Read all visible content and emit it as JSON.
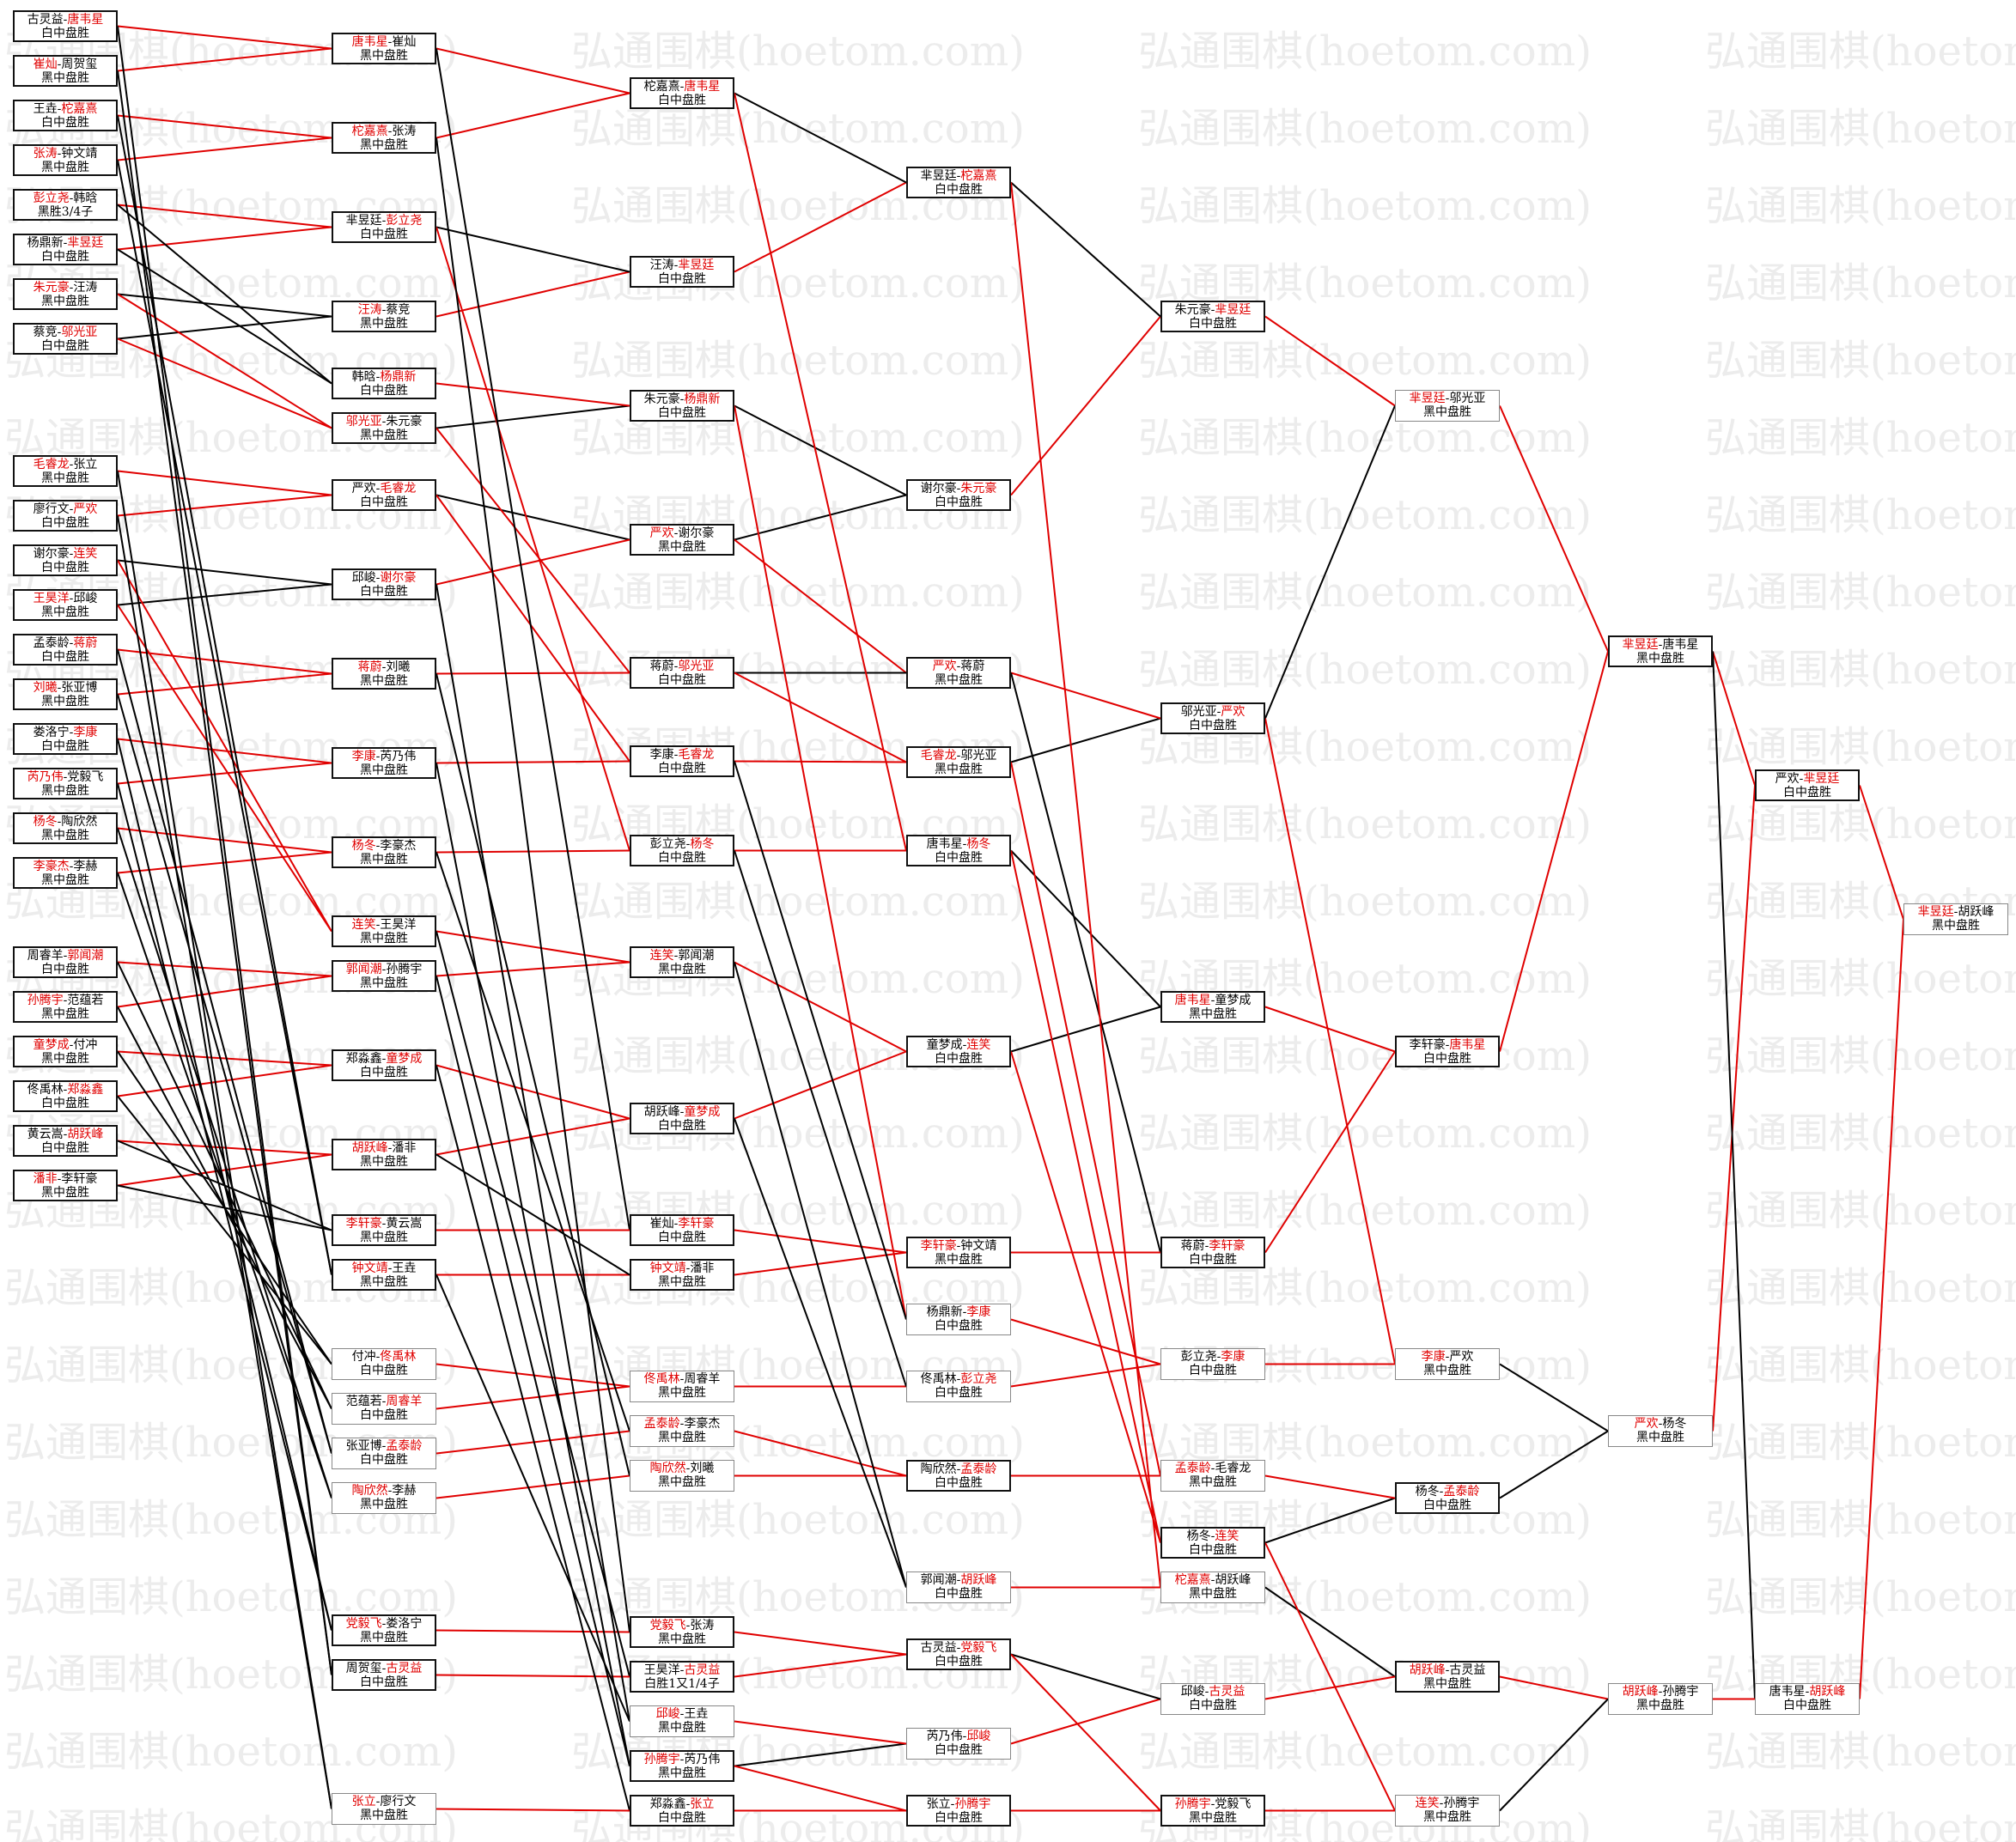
{
  "watermark": "弘通围棋(hoetom.com)",
  "colors": {
    "winner": "#e00000",
    "border": "#111111",
    "line_black": "#000000",
    "line_red": "#e00000"
  },
  "rounds": [
    [
      {
        "a": "古灵益",
        "b": "唐韦星",
        "w": "b",
        "r": "白中盘胜"
      },
      {
        "a": "崔灿",
        "b": "周贺玺",
        "w": "a",
        "r": "黑中盘胜"
      },
      {
        "a": "王垚",
        "b": "柁嘉熹",
        "w": "b",
        "r": "白中盘胜"
      },
      {
        "a": "张涛",
        "b": "钟文靖",
        "w": "a",
        "r": "黑中盘胜"
      },
      {
        "a": "彭立尧",
        "b": "韩晗",
        "w": "a",
        "r": "黑胜3/4子"
      },
      {
        "a": "杨鼎新",
        "b": "芈昱廷",
        "w": "b",
        "r": "白中盘胜"
      },
      {
        "a": "朱元豪",
        "b": "汪涛",
        "w": "a",
        "r": "黑中盘胜"
      },
      {
        "a": "蔡竞",
        "b": "邬光亚",
        "w": "b",
        "r": "白中盘胜"
      },
      {
        "a": "毛睿龙",
        "b": "张立",
        "w": "a",
        "r": "黑中盘胜"
      },
      {
        "a": "廖行文",
        "b": "严欢",
        "w": "b",
        "r": "白中盘胜"
      },
      {
        "a": "谢尔豪",
        "b": "连笑",
        "w": "b",
        "r": "白中盘胜"
      },
      {
        "a": "王昊洋",
        "b": "邱峻",
        "w": "a",
        "r": "黑中盘胜"
      },
      {
        "a": "孟泰龄",
        "b": "蒋蔚",
        "w": "b",
        "r": "白中盘胜"
      },
      {
        "a": "刘曦",
        "b": "张亚博",
        "w": "a",
        "r": "黑中盘胜"
      },
      {
        "a": "娄洛宁",
        "b": "李康",
        "w": "b",
        "r": "白中盘胜"
      },
      {
        "a": "芮乃伟",
        "b": "党毅飞",
        "w": "a",
        "r": "黑中盘胜"
      },
      {
        "a": "杨冬",
        "b": "陶欣然",
        "w": "a",
        "r": "黑中盘胜"
      },
      {
        "a": "李豪杰",
        "b": "李赫",
        "w": "a",
        "r": "黑中盘胜"
      },
      {
        "a": "周睿羊",
        "b": "郭闻潮",
        "w": "b",
        "r": "白中盘胜"
      },
      {
        "a": "孙腾宇",
        "b": "范蕴若",
        "w": "a",
        "r": "黑中盘胜"
      },
      {
        "a": "童梦成",
        "b": "付冲",
        "w": "a",
        "r": "黑中盘胜"
      },
      {
        "a": "佟禹林",
        "b": "郑淼鑫",
        "w": "b",
        "r": "白中盘胜"
      },
      {
        "a": "黄云嵩",
        "b": "胡跃峰",
        "w": "b",
        "r": "白中盘胜"
      },
      {
        "a": "潘非",
        "b": "李轩豪",
        "w": "a",
        "r": "黑中盘胜"
      }
    ],
    [
      {
        "a": "唐韦星",
        "b": "崔灿",
        "w": "a",
        "r": "黑中盘胜"
      },
      {
        "a": "柁嘉熹",
        "b": "张涛",
        "w": "a",
        "r": "黑中盘胜"
      },
      {
        "a": "芈昱廷",
        "b": "彭立尧",
        "w": "b",
        "r": "白中盘胜"
      },
      {
        "a": "汪涛",
        "b": "蔡竞",
        "w": "a",
        "r": "黑中盘胜"
      },
      {
        "a": "韩晗",
        "b": "杨鼎新",
        "w": "b",
        "r": "白中盘胜"
      },
      {
        "a": "邬光亚",
        "b": "朱元豪",
        "w": "a",
        "r": "黑中盘胜"
      },
      {
        "a": "严欢",
        "b": "毛睿龙",
        "w": "b",
        "r": "白中盘胜"
      },
      {
        "a": "邱峻",
        "b": "谢尔豪",
        "w": "b",
        "r": "白中盘胜"
      },
      {
        "a": "蒋蔚",
        "b": "刘曦",
        "w": "a",
        "r": "黑中盘胜"
      },
      {
        "a": "李康",
        "b": "芮乃伟",
        "w": "a",
        "r": "黑中盘胜"
      },
      {
        "a": "杨冬",
        "b": "李豪杰",
        "w": "a",
        "r": "黑中盘胜"
      },
      {
        "a": "连笑",
        "b": "王昊洋",
        "w": "a",
        "r": "黑中盘胜"
      },
      {
        "a": "郭闻潮",
        "b": "孙腾宇",
        "w": "a",
        "r": "黑中盘胜"
      },
      {
        "a": "郑淼鑫",
        "b": "童梦成",
        "w": "b",
        "r": "白中盘胜"
      },
      {
        "a": "胡跃峰",
        "b": "潘非",
        "w": "a",
        "r": "黑中盘胜"
      },
      {
        "a": "李轩豪",
        "b": "黄云嵩",
        "w": "a",
        "r": "黑中盘胜"
      },
      {
        "a": "钟文靖",
        "b": "王垚",
        "w": "a",
        "r": "黑中盘胜"
      },
      {
        "a": "付冲",
        "b": "佟禹林",
        "w": "b",
        "r": "白中盘胜"
      },
      {
        "a": "范蕴若",
        "b": "周睿羊",
        "w": "b",
        "r": "白中盘胜"
      },
      {
        "a": "张亚博",
        "b": "孟泰龄",
        "w": "b",
        "r": "白中盘胜"
      },
      {
        "a": "陶欣然",
        "b": "李赫",
        "w": "a",
        "r": "黑中盘胜"
      },
      {
        "a": "党毅飞",
        "b": "娄洛宁",
        "w": "a",
        "r": "黑中盘胜"
      },
      {
        "a": "周贺玺",
        "b": "古灵益",
        "w": "b",
        "r": "白中盘胜"
      },
      {
        "a": "张立",
        "b": "廖行文",
        "w": "a",
        "r": "黑中盘胜"
      }
    ],
    [
      {
        "a": "柁嘉熹",
        "b": "唐韦星",
        "w": "b",
        "r": "白中盘胜"
      },
      {
        "a": "汪涛",
        "b": "芈昱廷",
        "w": "b",
        "r": "白中盘胜"
      },
      {
        "a": "朱元豪",
        "b": "杨鼎新",
        "w": "b",
        "r": "白中盘胜"
      },
      {
        "a": "严欢",
        "b": "谢尔豪",
        "w": "a",
        "r": "黑中盘胜"
      },
      {
        "a": "蒋蔚",
        "b": "邬光亚",
        "w": "b",
        "r": "白中盘胜"
      },
      {
        "a": "李康",
        "b": "毛睿龙",
        "w": "b",
        "r": "白中盘胜"
      },
      {
        "a": "彭立尧",
        "b": "杨冬",
        "w": "b",
        "r": "白中盘胜"
      },
      {
        "a": "连笑",
        "b": "郭闻潮",
        "w": "a",
        "r": "黑中盘胜"
      },
      {
        "a": "胡跃峰",
        "b": "童梦成",
        "w": "b",
        "r": "白中盘胜"
      },
      {
        "a": "崔灿",
        "b": "李轩豪",
        "w": "b",
        "r": "白中盘胜"
      },
      {
        "a": "钟文靖",
        "b": "潘非",
        "w": "a",
        "r": "黑中盘胜"
      },
      {
        "a": "佟禹林",
        "b": "周睿羊",
        "w": "a",
        "r": "黑中盘胜"
      },
      {
        "a": "孟泰龄",
        "b": "李豪杰",
        "w": "a",
        "r": "黑中盘胜"
      },
      {
        "a": "陶欣然",
        "b": "刘曦",
        "w": "a",
        "r": "黑中盘胜"
      },
      {
        "a": "党毅飞",
        "b": "张涛",
        "w": "a",
        "r": "黑中盘胜"
      },
      {
        "a": "王昊洋",
        "b": "古灵益",
        "w": "b",
        "r": "白胜1又1/4子"
      },
      {
        "a": "邱峻",
        "b": "王垚",
        "w": "a",
        "r": "黑中盘胜"
      },
      {
        "a": "孙腾宇",
        "b": "芮乃伟",
        "w": "a",
        "r": "黑中盘胜"
      },
      {
        "a": "郑淼鑫",
        "b": "张立",
        "w": "b",
        "r": "白中盘胜"
      }
    ],
    [
      {
        "a": "芈昱廷",
        "b": "柁嘉熹",
        "w": "b",
        "r": "白中盘胜"
      },
      {
        "a": "谢尔豪",
        "b": "朱元豪",
        "w": "b",
        "r": "白中盘胜"
      },
      {
        "a": "严欢",
        "b": "蒋蔚",
        "w": "a",
        "r": "黑中盘胜"
      },
      {
        "a": "毛睿龙",
        "b": "邬光亚",
        "w": "a",
        "r": "黑中盘胜"
      },
      {
        "a": "唐韦星",
        "b": "杨冬",
        "w": "b",
        "r": "白中盘胜"
      },
      {
        "a": "童梦成",
        "b": "连笑",
        "w": "b",
        "r": "白中盘胜"
      },
      {
        "a": "李轩豪",
        "b": "钟文靖",
        "w": "a",
        "r": "黑中盘胜"
      },
      {
        "a": "杨鼎新",
        "b": "李康",
        "w": "b",
        "r": "白中盘胜"
      },
      {
        "a": "佟禹林",
        "b": "彭立尧",
        "w": "b",
        "r": "白中盘胜"
      },
      {
        "a": "陶欣然",
        "b": "孟泰龄",
        "w": "b",
        "r": "白中盘胜"
      },
      {
        "a": "郭闻潮",
        "b": "胡跃峰",
        "w": "b",
        "r": "白中盘胜"
      },
      {
        "a": "古灵益",
        "b": "党毅飞",
        "w": "b",
        "r": "白中盘胜"
      },
      {
        "a": "芮乃伟",
        "b": "邱峻",
        "w": "b",
        "r": "白中盘胜"
      },
      {
        "a": "张立",
        "b": "孙腾宇",
        "w": "b",
        "r": "白中盘胜"
      }
    ],
    [
      {
        "a": "朱元豪",
        "b": "芈昱廷",
        "w": "b",
        "r": "白中盘胜"
      },
      {
        "a": "邬光亚",
        "b": "严欢",
        "w": "b",
        "r": "白中盘胜"
      },
      {
        "a": "唐韦星",
        "b": "童梦成",
        "w": "a",
        "r": "黑中盘胜"
      },
      {
        "a": "蒋蔚",
        "b": "李轩豪",
        "w": "b",
        "r": "白中盘胜"
      },
      {
        "a": "彭立尧",
        "b": "李康",
        "w": "b",
        "r": "白中盘胜"
      },
      {
        "a": "孟泰龄",
        "b": "毛睿龙",
        "w": "a",
        "r": "黑中盘胜"
      },
      {
        "a": "杨冬",
        "b": "连笑",
        "w": "b",
        "r": "白中盘胜"
      },
      {
        "a": "柁嘉熹",
        "b": "胡跃峰",
        "w": "a",
        "r": "黑中盘胜"
      },
      {
        "a": "邱峻",
        "b": "古灵益",
        "w": "b",
        "r": "白中盘胜"
      },
      {
        "a": "孙腾宇",
        "b": "党毅飞",
        "w": "a",
        "r": "黑中盘胜"
      }
    ],
    [
      {
        "a": "芈昱廷",
        "b": "邬光亚",
        "w": "a",
        "r": "黑中盘胜"
      },
      {
        "a": "李轩豪",
        "b": "唐韦星",
        "w": "b",
        "r": "白中盘胜"
      },
      {
        "a": "李康",
        "b": "严欢",
        "w": "a",
        "r": "黑中盘胜"
      },
      {
        "a": "杨冬",
        "b": "孟泰龄",
        "w": "b",
        "r": "白中盘胜"
      },
      {
        "a": "胡跃峰",
        "b": "古灵益",
        "w": "a",
        "r": "黑中盘胜"
      },
      {
        "a": "连笑",
        "b": "孙腾宇",
        "w": "a",
        "r": "黑中盘胜"
      }
    ],
    [
      {
        "a": "芈昱廷",
        "b": "唐韦星",
        "w": "a",
        "r": "黑中盘胜"
      },
      {
        "a": "严欢",
        "b": "杨冬",
        "w": "a",
        "r": "黑中盘胜"
      },
      {
        "a": "胡跃峰",
        "b": "孙腾宇",
        "w": "a",
        "r": "黑中盘胜"
      }
    ],
    [
      {
        "a": "严欢",
        "b": "芈昱廷",
        "w": "b",
        "r": "白中盘胜"
      },
      {
        "a": "唐韦星",
        "b": "胡跃峰",
        "w": "b",
        "r": "白中盘胜"
      }
    ],
    [
      {
        "a": "芈昱廷",
        "b": "胡跃峰",
        "w": "a",
        "r": "黑中盘胜"
      }
    ]
  ]
}
